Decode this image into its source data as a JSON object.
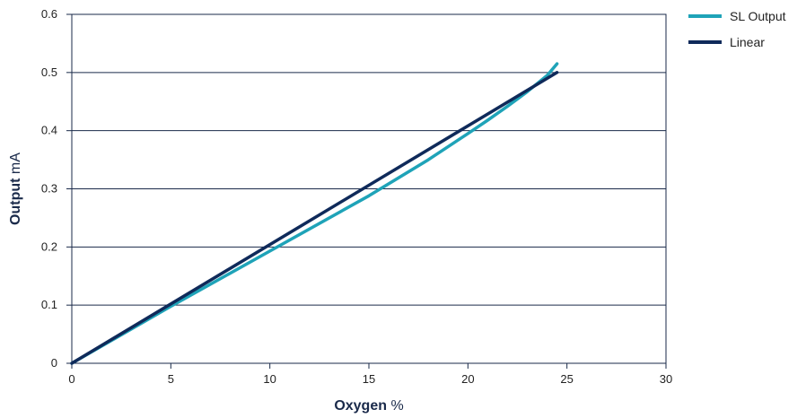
{
  "chart_data": {
    "type": "line",
    "xlabel": {
      "bold": "Oxygen",
      "unit": "%"
    },
    "ylabel": {
      "bold": "Output",
      "unit": "mA"
    },
    "xlim": [
      0,
      30
    ],
    "ylim": [
      0,
      0.6
    ],
    "x_ticks": [
      0,
      5,
      10,
      15,
      20,
      25,
      30
    ],
    "y_ticks": [
      0,
      0.1,
      0.2,
      0.3,
      0.4,
      0.5,
      0.6
    ],
    "x_tick_labels": [
      "0",
      "5",
      "10",
      "15",
      "20",
      "25",
      "30"
    ],
    "y_tick_labels": [
      "0",
      "0.1",
      "0.2",
      "0.3",
      "0.4",
      "0.5",
      "0.6"
    ],
    "grid": "horizontal",
    "legend_position": "top-right-outside",
    "series": [
      {
        "name": "SL Output",
        "color": "#1fa3b8",
        "x": [
          0,
          5,
          10,
          15,
          18,
          20,
          21,
          22,
          23,
          24,
          24.5
        ],
        "y": [
          0,
          0.098,
          0.193,
          0.288,
          0.35,
          0.395,
          0.418,
          0.442,
          0.467,
          0.495,
          0.515
        ]
      },
      {
        "name": "Linear",
        "color": "#0f2a5a",
        "x": [
          0,
          24.5
        ],
        "y": [
          0,
          0.5
        ]
      }
    ]
  }
}
